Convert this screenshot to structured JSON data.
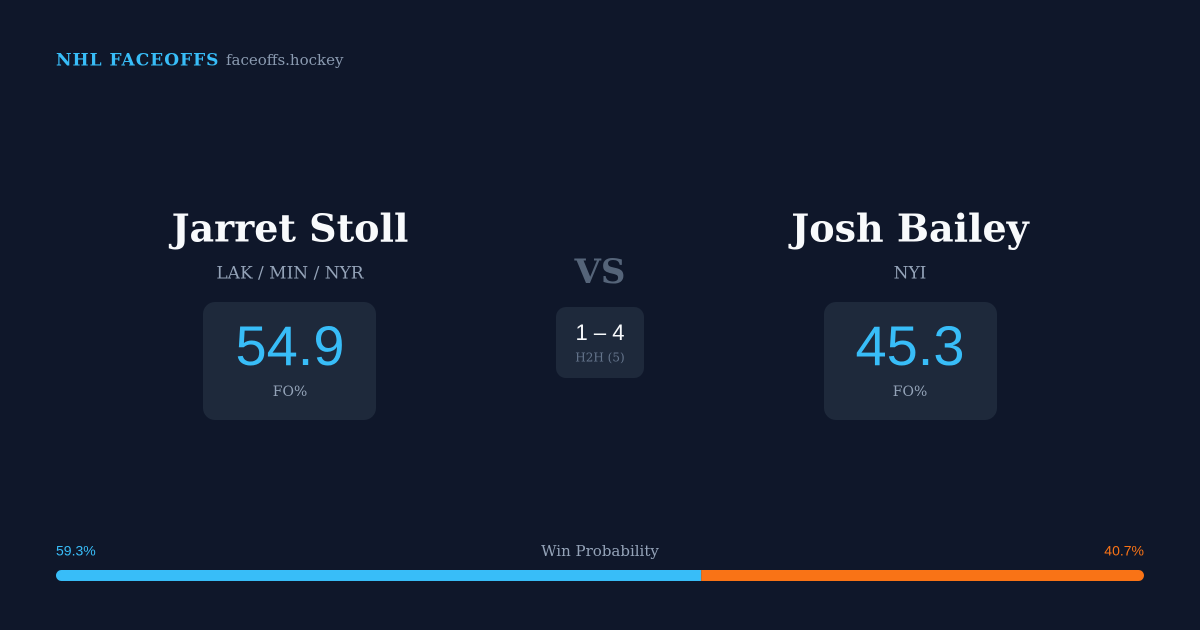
{
  "header": {
    "title": "NHL FACEOFFS",
    "site": "faceoffs.hockey"
  },
  "players": [
    {
      "name": "Jarret Stoll",
      "teams": "LAK / MIN / NYR",
      "fo_pct": 54.9,
      "fo_label": "FO%"
    },
    {
      "name": "Josh Bailey",
      "teams": "NYI",
      "fo_pct": 45.3,
      "fo_label": "FO%"
    }
  ],
  "versus": {
    "label": "VS",
    "h2h_score": "1 – 4",
    "h2h_label": "H2H (5)"
  },
  "win_probability": {
    "label": "Win Probability",
    "values": [
      59.3,
      40.7
    ],
    "value_labels": [
      "59.3%",
      "40.7%"
    ],
    "colors": [
      "#38bdf8",
      "#f97316"
    ]
  }
}
